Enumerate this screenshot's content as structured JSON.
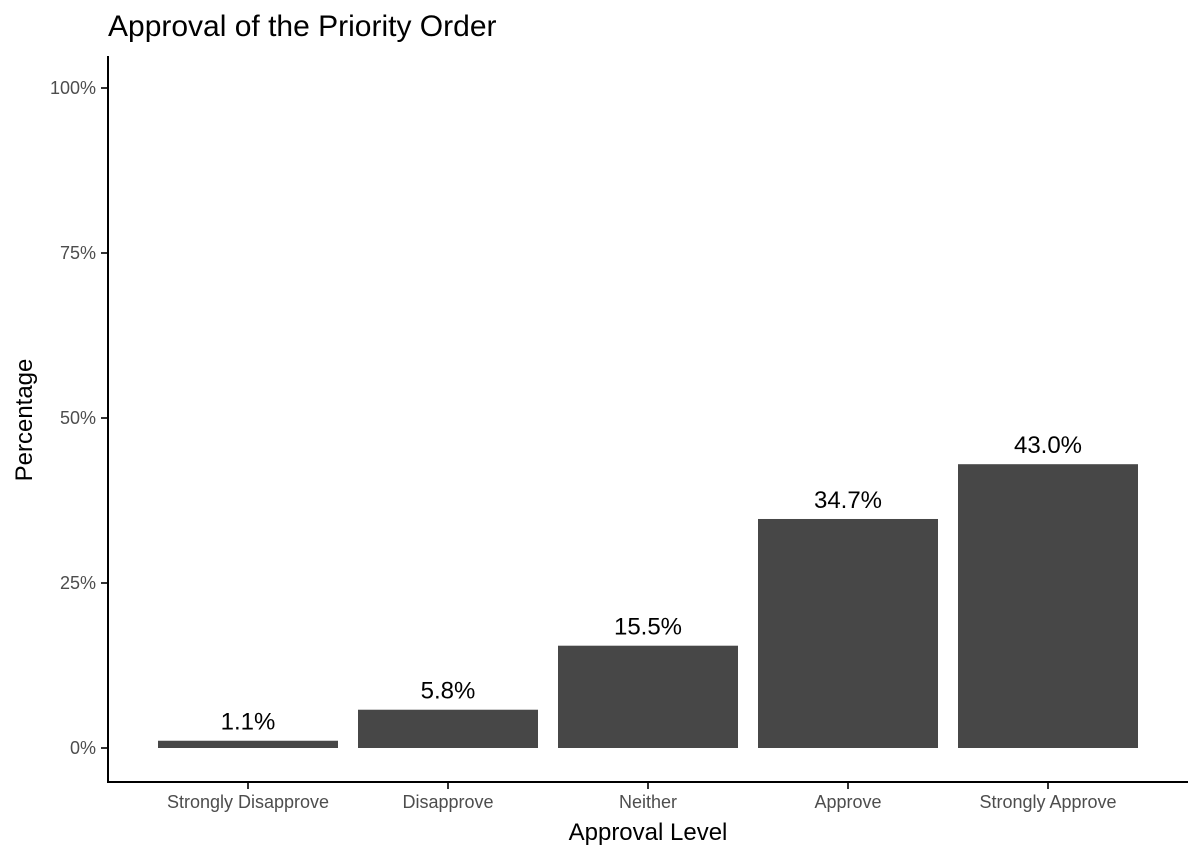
{
  "chart_data": {
    "type": "bar",
    "title": "Approval of the Priority Order",
    "xlabel": "Approval Level",
    "ylabel": "Percentage",
    "categories": [
      "Strongly Disapprove",
      "Disapprove",
      "Neither",
      "Approve",
      "Strongly Approve"
    ],
    "values": [
      1.1,
      5.8,
      15.5,
      34.7,
      43.0
    ],
    "data_labels": [
      "1.1%",
      "5.8%",
      "15.5%",
      "34.7%",
      "43.0%"
    ],
    "ylim": [
      0,
      100
    ],
    "y_ticks": [
      0,
      25,
      50,
      75,
      100
    ],
    "y_tick_labels": [
      "0%",
      "25%",
      "50%",
      "75%",
      "100%"
    ],
    "bar_color": "#474747",
    "grid": false,
    "legend": "none"
  }
}
